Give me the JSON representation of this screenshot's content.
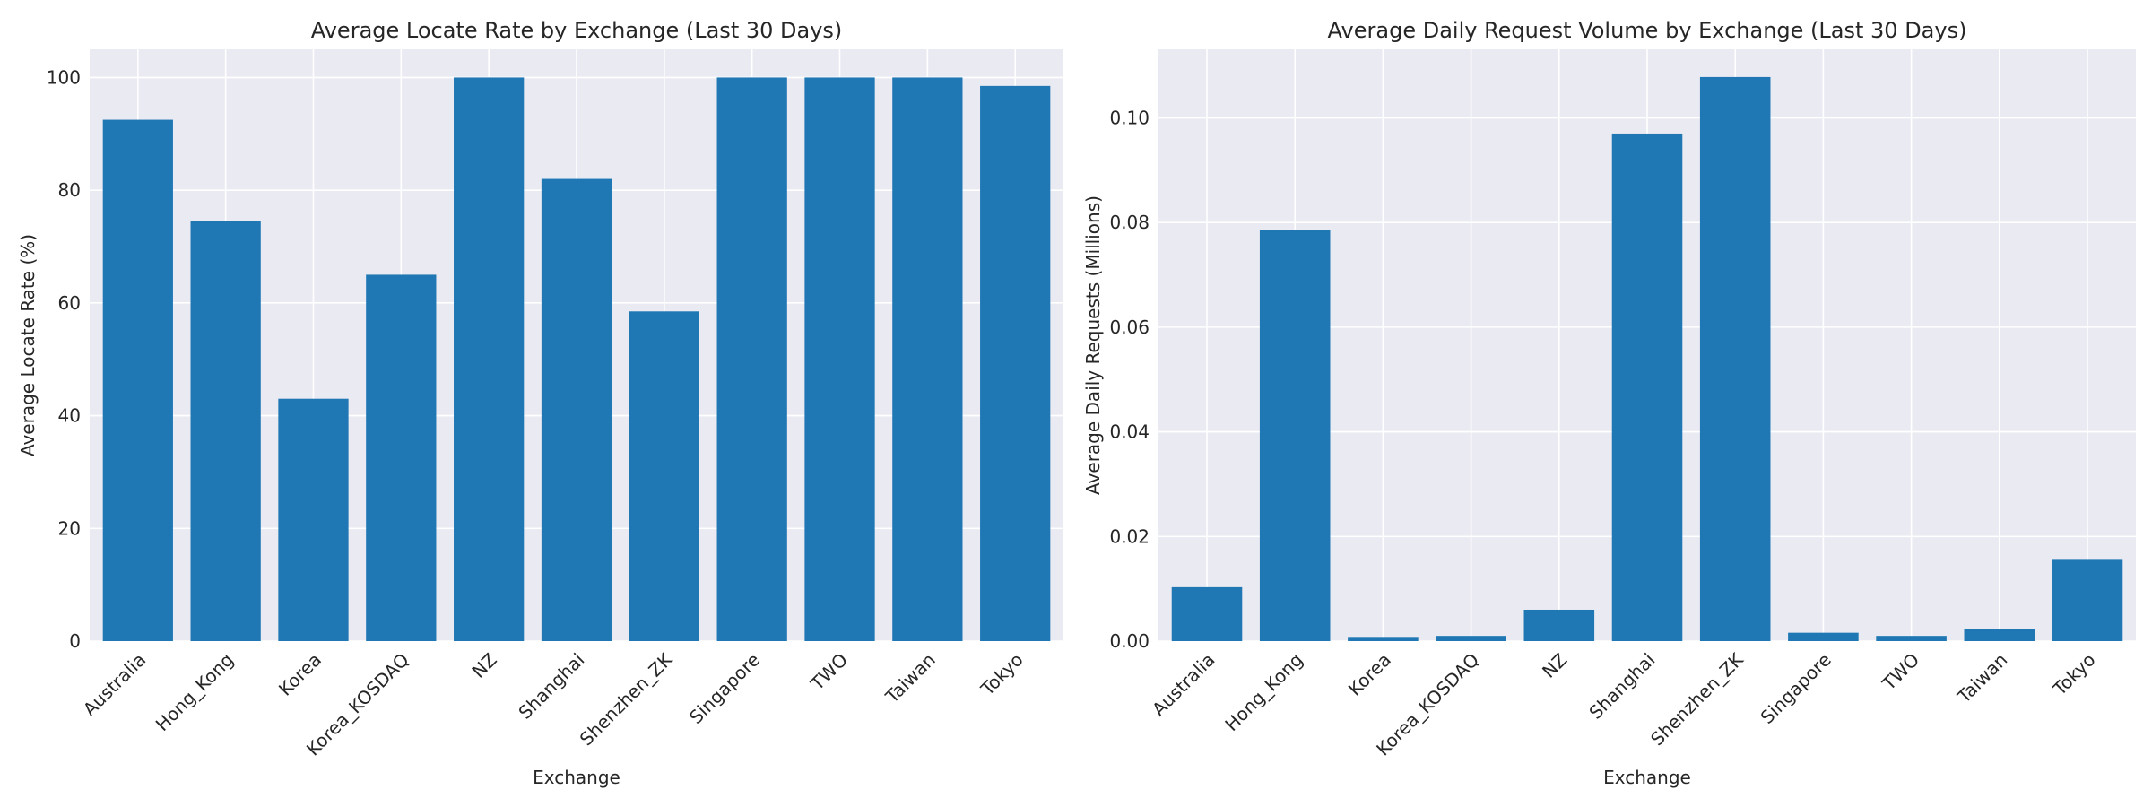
{
  "chart_data": [
    {
      "type": "bar",
      "title": "Average Locate Rate by Exchange (Last 30 Days)",
      "xlabel": "Exchange",
      "ylabel": "Average Locate Rate (%)",
      "categories": [
        "Australia",
        "Hong_Kong",
        "Korea",
        "Korea_KOSDAQ",
        "NZ",
        "Shanghai",
        "Shenzhen_ZK",
        "Singapore",
        "TWO",
        "Taiwan",
        "Tokyo"
      ],
      "values": [
        92.5,
        74.5,
        43.0,
        65.0,
        100.0,
        82.0,
        58.5,
        100.0,
        100.0,
        100.0,
        98.5
      ],
      "ylim": [
        0,
        105
      ],
      "yticks": [
        0,
        20,
        40,
        60,
        80,
        100
      ],
      "ytick_labels": [
        "0",
        "20",
        "40",
        "60",
        "80",
        "100"
      ],
      "grid": true,
      "color": "#1f77b4"
    },
    {
      "type": "bar",
      "title": "Average Daily Request Volume by Exchange (Last 30 Days)",
      "xlabel": "Exchange",
      "ylabel": "Average Daily Requests (Millions)",
      "categories": [
        "Australia",
        "Hong_Kong",
        "Korea",
        "Korea_KOSDAQ",
        "NZ",
        "Shanghai",
        "Shenzhen_ZK",
        "Singapore",
        "TWO",
        "Taiwan",
        "Tokyo"
      ],
      "values": [
        0.0103,
        0.0785,
        0.0008,
        0.001,
        0.006,
        0.097,
        0.1078,
        0.0016,
        0.001,
        0.0023,
        0.0157
      ],
      "ylim": [
        0,
        0.1131
      ],
      "yticks": [
        0,
        0.02,
        0.04,
        0.06,
        0.08,
        0.1
      ],
      "ytick_labels": [
        "0.00",
        "0.02",
        "0.04",
        "0.06",
        "0.08",
        "0.10"
      ],
      "grid": true,
      "color": "#1f77b4"
    }
  ]
}
